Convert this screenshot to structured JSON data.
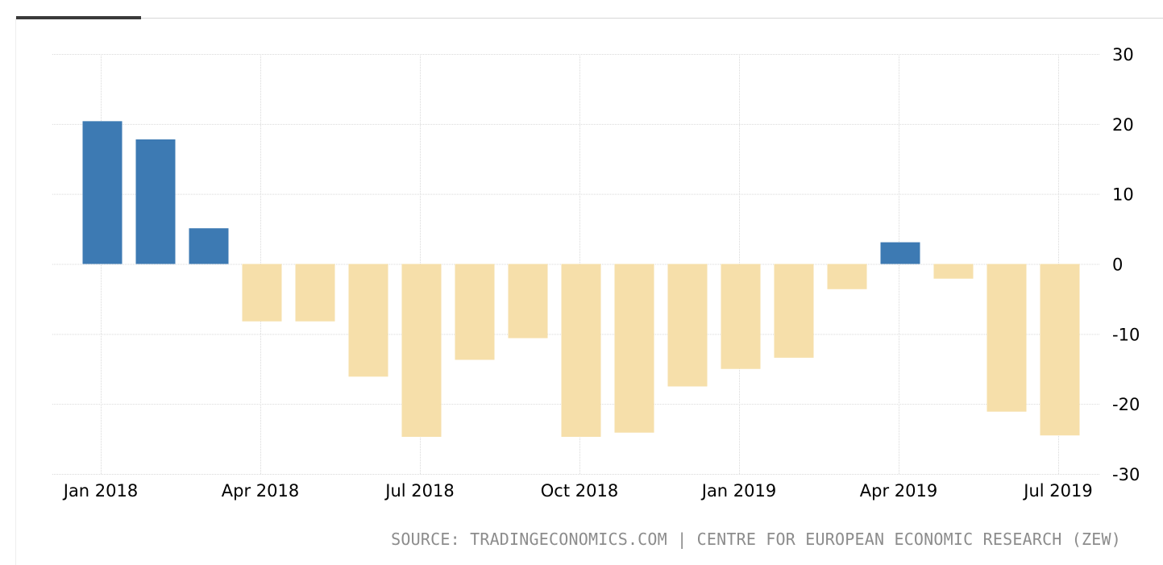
{
  "chart_data": {
    "type": "bar",
    "categories": [
      "Jan 2018",
      "Feb 2018",
      "Mar 2018",
      "Apr 2018",
      "May 2018",
      "Jun 2018",
      "Jul 2018",
      "Aug 2018",
      "Sep 2018",
      "Oct 2018",
      "Nov 2018",
      "Dec 2018",
      "Jan 2019",
      "Feb 2019",
      "Mar 2019",
      "Apr 2019",
      "May 2019",
      "Jun 2019",
      "Jul 2019"
    ],
    "values": [
      20.4,
      17.8,
      5.1,
      -8.2,
      -8.2,
      -16.1,
      -24.7,
      -13.7,
      -10.6,
      -24.7,
      -24.1,
      -17.5,
      -15.0,
      -13.4,
      -3.6,
      3.1,
      -2.1,
      -21.1,
      -24.5
    ],
    "x_tick_labels": [
      "Jan 2018",
      "Apr 2018",
      "Jul 2018",
      "Oct 2018",
      "Jan 2019",
      "Apr 2019",
      "Jul 2019"
    ],
    "x_tick_indices": [
      0,
      3,
      6,
      9,
      12,
      15,
      18
    ],
    "y_ticks": [
      30,
      20,
      10,
      0,
      -10,
      -20,
      -30
    ],
    "ylim": [
      -30,
      30
    ],
    "y_axis_side": "right",
    "grid": true,
    "title": "",
    "xlabel": "",
    "ylabel": "",
    "colors": {
      "positive": "#3d7ab3",
      "negative": "#f6dfaa",
      "grid": "#d9d9d9"
    }
  },
  "source_text": "SOURCE: TRADINGECONOMICS.COM | CENTRE FOR EUROPEAN ECONOMIC RESEARCH (ZEW)"
}
